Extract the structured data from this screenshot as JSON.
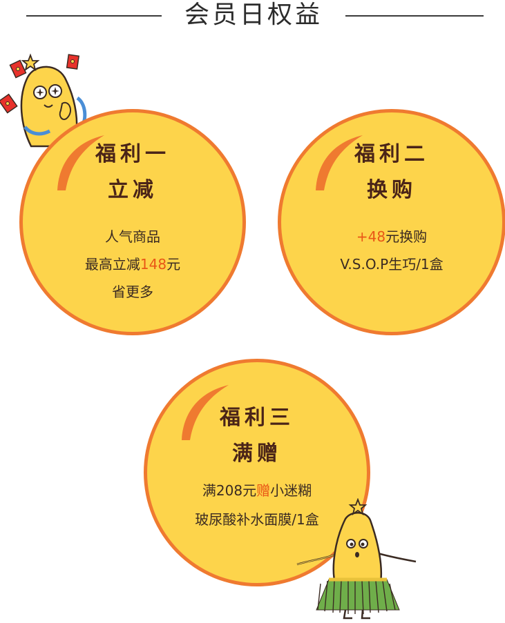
{
  "header": {
    "title": "会员日权益"
  },
  "benefits": [
    {
      "heading": "福利一",
      "subheading": "立减",
      "line1": "人气商品",
      "line2_pre": "最高立减",
      "line2_highlight": "148",
      "line2_post": "元",
      "line3": "省更多"
    },
    {
      "heading": "福利二",
      "subheading": "换购",
      "line1_highlight": "+48",
      "line1_post": "元换购",
      "line2": "V.S.O.P生巧/1盒"
    },
    {
      "heading": "福利三",
      "subheading": "满赠",
      "line1_pre": "满208元",
      "line1_highlight": "赠",
      "line1_post": "小迷糊",
      "line2": "玻尿酸补水面膜/1盒"
    }
  ],
  "colors": {
    "circle_fill": "#fdd44b",
    "circle_border": "#ef7a30",
    "highlight": "#e95616",
    "heading_text": "#4a2418"
  }
}
